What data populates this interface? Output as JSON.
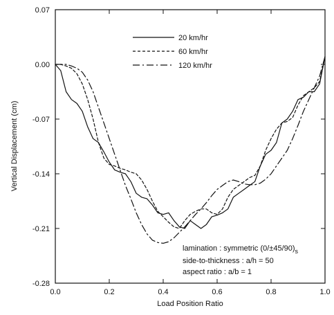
{
  "chart_data": {
    "type": "line",
    "xlabel": "Load Position Ratio",
    "ylabel": "Vertical Displacement (cm)",
    "xlim": [
      0.0,
      1.0
    ],
    "ylim": [
      -0.28,
      0.07
    ],
    "xticks": [
      0.0,
      0.2,
      0.4,
      0.6,
      0.8,
      1.0
    ],
    "xtick_labels": [
      "0.0",
      "0.2",
      "0.4",
      "0.6",
      "0.8",
      "1.0"
    ],
    "yticks": [
      0.07,
      0.0,
      -0.07,
      -0.14,
      -0.21,
      -0.28
    ],
    "ytick_labels": [
      "0.07",
      "0.00",
      "-0.07",
      "-0.14",
      "-0.21",
      "-0.28"
    ],
    "grid": false,
    "legend_position": "top-center",
    "annotation": {
      "line1_prefix": "lamination : symmetric (0/±45/90)",
      "line1_subscript": "s",
      "line2": "side-to-thickness : a/h = 50",
      "line3": "aspect ratio : a/b = 1"
    },
    "series": [
      {
        "name": "20 km/hr",
        "dash": "solid",
        "x": [
          0.0,
          0.02,
          0.04,
          0.06,
          0.08,
          0.1,
          0.12,
          0.14,
          0.16,
          0.18,
          0.2,
          0.22,
          0.24,
          0.26,
          0.28,
          0.3,
          0.32,
          0.34,
          0.36,
          0.38,
          0.4,
          0.42,
          0.44,
          0.46,
          0.48,
          0.5,
          0.52,
          0.54,
          0.56,
          0.58,
          0.6,
          0.62,
          0.64,
          0.66,
          0.68,
          0.7,
          0.72,
          0.74,
          0.76,
          0.78,
          0.8,
          0.82,
          0.84,
          0.86,
          0.88,
          0.9,
          0.92,
          0.94,
          0.96,
          0.98,
          1.0
        ],
        "y": [
          0.0,
          -0.008,
          -0.035,
          -0.045,
          -0.05,
          -0.06,
          -0.08,
          -0.095,
          -0.1,
          -0.112,
          -0.125,
          -0.135,
          -0.138,
          -0.14,
          -0.15,
          -0.165,
          -0.17,
          -0.172,
          -0.18,
          -0.19,
          -0.192,
          -0.19,
          -0.2,
          -0.208,
          -0.21,
          -0.2,
          -0.205,
          -0.21,
          -0.205,
          -0.195,
          -0.193,
          -0.19,
          -0.185,
          -0.17,
          -0.165,
          -0.16,
          -0.155,
          -0.15,
          -0.13,
          -0.115,
          -0.11,
          -0.1,
          -0.075,
          -0.07,
          -0.06,
          -0.045,
          -0.042,
          -0.035,
          -0.035,
          -0.025,
          0.01
        ]
      },
      {
        "name": "60 km/hr",
        "dash": "dashed",
        "x": [
          0.0,
          0.02,
          0.04,
          0.06,
          0.08,
          0.1,
          0.12,
          0.14,
          0.16,
          0.18,
          0.2,
          0.22,
          0.24,
          0.26,
          0.28,
          0.3,
          0.32,
          0.34,
          0.36,
          0.38,
          0.4,
          0.42,
          0.44,
          0.46,
          0.48,
          0.5,
          0.52,
          0.54,
          0.56,
          0.58,
          0.6,
          0.62,
          0.64,
          0.66,
          0.68,
          0.7,
          0.72,
          0.74,
          0.76,
          0.78,
          0.8,
          0.82,
          0.84,
          0.86,
          0.88,
          0.9,
          0.92,
          0.94,
          0.96,
          0.98,
          1.0
        ],
        "y": [
          0.0,
          0.0,
          -0.002,
          -0.005,
          -0.012,
          -0.025,
          -0.045,
          -0.07,
          -0.1,
          -0.12,
          -0.128,
          -0.13,
          -0.133,
          -0.135,
          -0.138,
          -0.14,
          -0.148,
          -0.16,
          -0.175,
          -0.188,
          -0.195,
          -0.202,
          -0.208,
          -0.21,
          -0.2,
          -0.192,
          -0.188,
          -0.185,
          -0.185,
          -0.19,
          -0.192,
          -0.185,
          -0.17,
          -0.16,
          -0.155,
          -0.15,
          -0.145,
          -0.142,
          -0.13,
          -0.11,
          -0.095,
          -0.083,
          -0.075,
          -0.073,
          -0.068,
          -0.052,
          -0.04,
          -0.035,
          -0.03,
          -0.022,
          0.01
        ]
      },
      {
        "name": "120 km/hr",
        "dash": "dashdot",
        "x": [
          0.0,
          0.02,
          0.04,
          0.06,
          0.08,
          0.1,
          0.12,
          0.14,
          0.16,
          0.18,
          0.2,
          0.22,
          0.24,
          0.26,
          0.28,
          0.3,
          0.32,
          0.34,
          0.36,
          0.38,
          0.4,
          0.42,
          0.44,
          0.46,
          0.48,
          0.5,
          0.52,
          0.54,
          0.56,
          0.58,
          0.6,
          0.62,
          0.64,
          0.66,
          0.68,
          0.7,
          0.72,
          0.74,
          0.76,
          0.78,
          0.8,
          0.82,
          0.84,
          0.86,
          0.88,
          0.9,
          0.92,
          0.94,
          0.96,
          0.98,
          1.0
        ],
        "y": [
          0.0,
          0.0,
          0.0,
          -0.002,
          -0.005,
          -0.01,
          -0.02,
          -0.035,
          -0.055,
          -0.075,
          -0.095,
          -0.115,
          -0.135,
          -0.155,
          -0.172,
          -0.19,
          -0.205,
          -0.217,
          -0.225,
          -0.228,
          -0.229,
          -0.227,
          -0.222,
          -0.215,
          -0.208,
          -0.2,
          -0.192,
          -0.185,
          -0.177,
          -0.168,
          -0.16,
          -0.155,
          -0.15,
          -0.148,
          -0.15,
          -0.153,
          -0.154,
          -0.154,
          -0.152,
          -0.147,
          -0.14,
          -0.13,
          -0.12,
          -0.11,
          -0.095,
          -0.078,
          -0.06,
          -0.045,
          -0.03,
          -0.015,
          0.01
        ]
      }
    ]
  }
}
